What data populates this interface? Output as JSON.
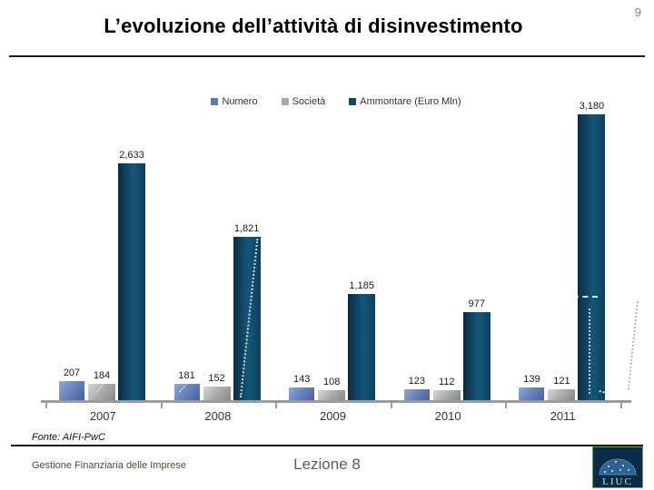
{
  "page": {
    "number": "9"
  },
  "header": {
    "title": "L’evoluzione dell’attività di disinvestimento"
  },
  "chart_data": {
    "type": "bar",
    "title": "",
    "categories": [
      "2007",
      "2008",
      "2009",
      "2010",
      "2011"
    ],
    "series": [
      {
        "name": "Numero",
        "color": "#5b79b4",
        "values": [
          207,
          181,
          143,
          123,
          139
        ]
      },
      {
        "name": "Società",
        "color": "#a8a8a8",
        "values": [
          184,
          152,
          108,
          112,
          121
        ]
      },
      {
        "name": "Ammontare (Euro Mln)",
        "color": "#12476b",
        "values": [
          2633,
          1821,
          1185,
          977,
          3180
        ]
      }
    ],
    "ylim": [
      0,
      3180
    ],
    "legend_position": "top",
    "grid": false,
    "data_labels": true,
    "xlabel": "",
    "ylabel": ""
  },
  "footer": {
    "source": "Fonte: AIFI-PwC",
    "course": "Gestione Finanziaria delle Imprese",
    "lesson": "Lezione 8",
    "logo_text": "LIUC"
  }
}
